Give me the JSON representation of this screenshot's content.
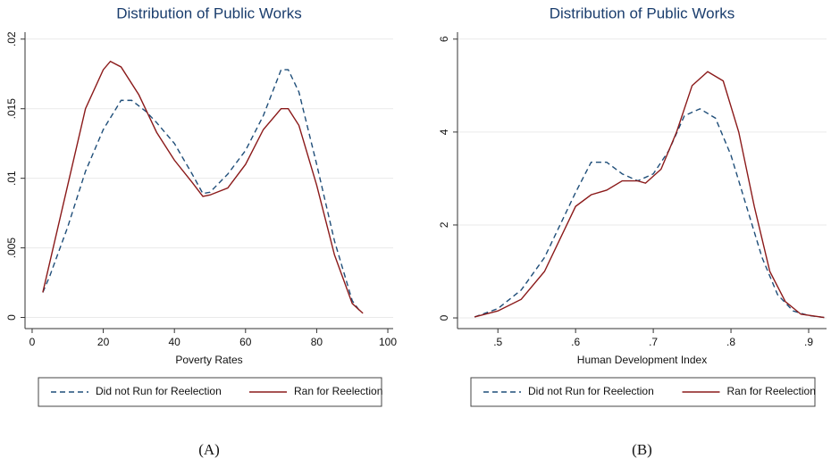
{
  "chart_data": [
    {
      "type": "line",
      "title": "Distribution of Public Works",
      "x_label": "Poverty Rates",
      "caption": "(A)",
      "xlim": [
        -2,
        101.5
      ],
      "ylim": [
        -0.0008,
        0.0205
      ],
      "xticks": [
        0,
        20,
        40,
        60,
        80,
        100
      ],
      "yticks": [
        0,
        {
          "value": 0.005,
          "label": ".005"
        },
        {
          "value": 0.01,
          "label": ".01"
        },
        {
          "value": 0.015,
          "label": ".015"
        },
        {
          "value": 0.02,
          "label": ".02"
        }
      ],
      "grid": true,
      "series": [
        {
          "name": "Did not Run for Reelection",
          "color": "#1f4e79",
          "linestyle": "dashed",
          "x": [
            3,
            5,
            10,
            15,
            20,
            25,
            28,
            32,
            35,
            40,
            45,
            48,
            50,
            55,
            60,
            65,
            70,
            72,
            75,
            80,
            85,
            90,
            92
          ],
          "values": [
            0.0018,
            0.003,
            0.0065,
            0.0105,
            0.0135,
            0.0156,
            0.0156,
            0.0148,
            0.014,
            0.0125,
            0.0103,
            0.0089,
            0.009,
            0.0103,
            0.012,
            0.0145,
            0.0178,
            0.0178,
            0.0162,
            0.011,
            0.0055,
            0.0012,
            0.0005
          ]
        },
        {
          "name": "Ran for Reelection",
          "color": "#8b1a1a",
          "linestyle": "solid",
          "x": [
            3,
            5,
            10,
            15,
            20,
            22,
            25,
            30,
            35,
            40,
            45,
            48,
            50,
            55,
            60,
            65,
            70,
            72,
            75,
            80,
            85,
            90,
            93
          ],
          "values": [
            0.0018,
            0.004,
            0.0095,
            0.015,
            0.0178,
            0.0184,
            0.018,
            0.016,
            0.0133,
            0.0113,
            0.0097,
            0.0087,
            0.0088,
            0.0093,
            0.011,
            0.0135,
            0.015,
            0.015,
            0.0138,
            0.0095,
            0.0045,
            0.001,
            0.0003
          ]
        }
      ]
    },
    {
      "type": "line",
      "title": "Distribution of Public Works",
      "x_label": "Human Development Index",
      "caption": "(B)",
      "xlim": [
        0.448,
        0.923
      ],
      "ylim": [
        -0.23,
        6.15
      ],
      "xticks": [
        {
          "value": 0.5,
          "label": ".5"
        },
        {
          "value": 0.6,
          "label": ".6"
        },
        {
          "value": 0.7,
          "label": ".7"
        },
        {
          "value": 0.8,
          "label": ".8"
        },
        {
          "value": 0.9,
          "label": ".9"
        }
      ],
      "yticks": [
        0,
        2,
        4,
        6
      ],
      "grid": true,
      "series": [
        {
          "name": "Did not Run for Reelection",
          "color": "#1f4e79",
          "linestyle": "dashed",
          "x": [
            0.47,
            0.5,
            0.53,
            0.56,
            0.6,
            0.62,
            0.64,
            0.66,
            0.68,
            0.7,
            0.72,
            0.74,
            0.76,
            0.78,
            0.8,
            0.82,
            0.84,
            0.86,
            0.88,
            0.9,
            0.92
          ],
          "values": [
            0.02,
            0.2,
            0.6,
            1.3,
            2.7,
            3.35,
            3.35,
            3.1,
            2.95,
            3.1,
            3.6,
            4.35,
            4.5,
            4.3,
            3.5,
            2.4,
            1.3,
            0.5,
            0.15,
            0.05,
            0.01
          ]
        },
        {
          "name": "Ran for Reelection",
          "color": "#8b1a1a",
          "linestyle": "solid",
          "x": [
            0.47,
            0.5,
            0.53,
            0.56,
            0.6,
            0.62,
            0.64,
            0.66,
            0.68,
            0.69,
            0.71,
            0.73,
            0.75,
            0.77,
            0.79,
            0.81,
            0.83,
            0.85,
            0.87,
            0.89,
            0.92
          ],
          "values": [
            0.02,
            0.15,
            0.4,
            1.0,
            2.4,
            2.65,
            2.75,
            2.95,
            2.95,
            2.9,
            3.2,
            4.0,
            5.0,
            5.3,
            5.1,
            4.0,
            2.4,
            1.0,
            0.35,
            0.08,
            0.01
          ]
        }
      ]
    }
  ]
}
